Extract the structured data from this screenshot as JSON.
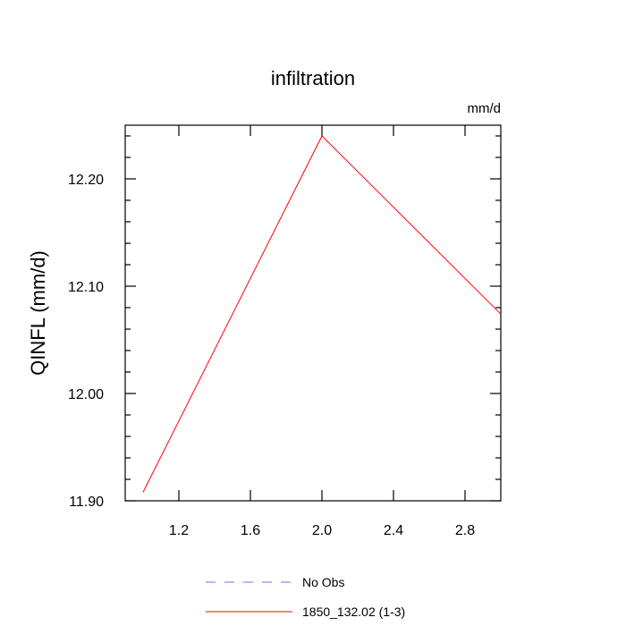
{
  "chart_data": {
    "type": "line",
    "title": "infiltration",
    "units_label": "mm/d",
    "ylabel": "QINFL  (mm/d)",
    "xlabel": "",
    "xlim": [
      0.9,
      3.0
    ],
    "ylim": [
      11.9,
      12.25
    ],
    "x_ticks": [
      1.2,
      1.6,
      2.0,
      2.4,
      2.8
    ],
    "x_tick_labels": [
      "1.2",
      "1.6",
      "2.0",
      "2.4",
      "2.8"
    ],
    "y_ticks": [
      11.9,
      12.0,
      12.1,
      12.2
    ],
    "y_tick_labels": [
      "11.90",
      "12.00",
      "12.10",
      "12.20"
    ],
    "grid": false,
    "legend_position": "bottom",
    "series": [
      {
        "name": "1850_132.02 (1-3)",
        "color": "#ff0000",
        "dash": "solid",
        "x": [
          1,
          2,
          3
        ],
        "y": [
          11.908,
          12.24,
          12.074
        ]
      }
    ],
    "legend": [
      {
        "label": "No Obs",
        "color": "#6b6bff",
        "dash": "dashed"
      },
      {
        "label": "1850_132.02 (1-3)",
        "color": "#ff0000",
        "dash": "solid"
      }
    ]
  }
}
